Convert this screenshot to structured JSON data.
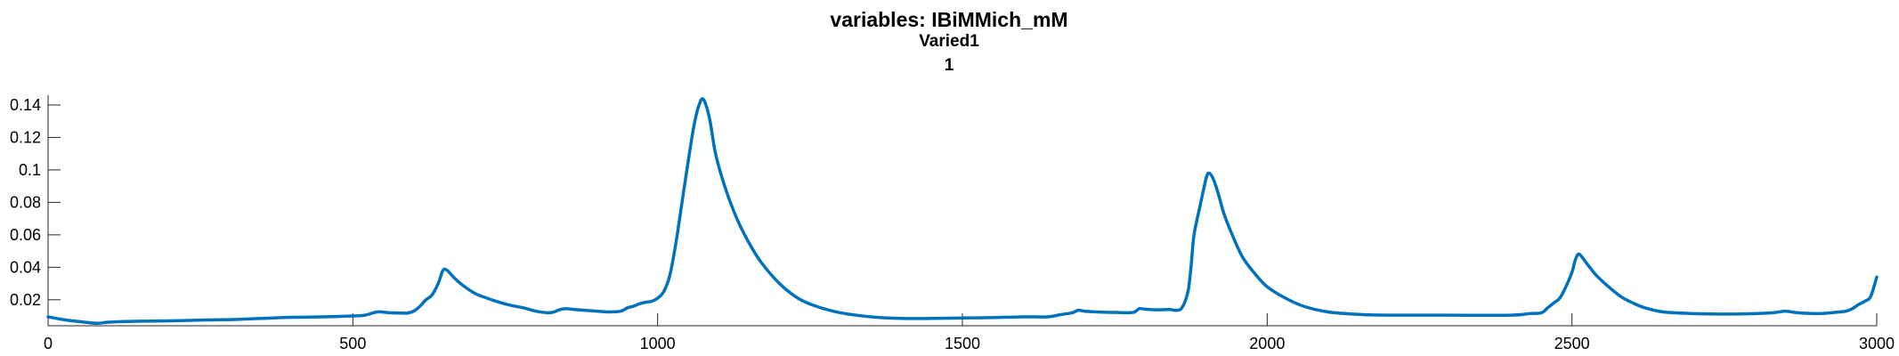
{
  "chart_data": {
    "type": "line",
    "title": "variables: IBiMMich_mM",
    "subtitle": "Varied1",
    "subtitle2": "1",
    "xlabel": "",
    "ylabel": "",
    "xlim": [
      0,
      3000
    ],
    "ylim": [
      0.004,
      0.146
    ],
    "x_ticks": [
      0,
      500,
      1000,
      1500,
      2000,
      2500,
      3000
    ],
    "x_tick_labels": [
      "0",
      "500",
      "1000",
      "1500",
      "2000",
      "2500",
      "3000"
    ],
    "y_ticks": [
      0.02,
      0.04,
      0.06,
      0.08,
      0.1,
      0.12,
      0.14
    ],
    "y_tick_labels": [
      "0.02",
      "0.04",
      "0.06",
      "0.08",
      "0.1",
      "0.12",
      "0.14"
    ],
    "grid": false,
    "series": [
      {
        "color": "#0072bd",
        "x": [
          0,
          30,
          60,
          80,
          100,
          150,
          200,
          250,
          300,
          350,
          400,
          450,
          500,
          520,
          540,
          560,
          580,
          590,
          600,
          610,
          620,
          630,
          640,
          648,
          655,
          665,
          680,
          700,
          720,
          740,
          760,
          780,
          800,
          820,
          830,
          840,
          850,
          870,
          900,
          920,
          940,
          950,
          960,
          970,
          975,
          980,
          990,
          1000,
          1010,
          1020,
          1030,
          1040,
          1050,
          1060,
          1068,
          1075,
          1085,
          1095,
          1110,
          1130,
          1150,
          1170,
          1200,
          1230,
          1260,
          1300,
          1350,
          1400,
          1450,
          1500,
          1550,
          1600,
          1640,
          1660,
          1680,
          1690,
          1700,
          1720,
          1750,
          1780,
          1790,
          1800,
          1820,
          1840,
          1850,
          1860,
          1870,
          1875,
          1880,
          1890,
          1900,
          1905,
          1912,
          1920,
          1930,
          1945,
          1960,
          1980,
          2000,
          2030,
          2060,
          2100,
          2150,
          2200,
          2300,
          2400,
          2430,
          2450,
          2460,
          2470,
          2480,
          2490,
          2500,
          2505,
          2510,
          2515,
          2525,
          2540,
          2560,
          2580,
          2600,
          2620,
          2650,
          2700,
          2750,
          2800,
          2830,
          2850,
          2870,
          2900,
          2920,
          2940,
          2950,
          2960,
          2970,
          2980,
          2990,
          3000
        ],
        "y": [
          0.0095,
          0.0075,
          0.0062,
          0.0055,
          0.0062,
          0.0068,
          0.007,
          0.0075,
          0.0078,
          0.0085,
          0.0092,
          0.0095,
          0.01,
          0.0105,
          0.0125,
          0.012,
          0.0118,
          0.0118,
          0.013,
          0.016,
          0.02,
          0.023,
          0.03,
          0.0382,
          0.038,
          0.034,
          0.029,
          0.024,
          0.021,
          0.0185,
          0.0165,
          0.015,
          0.013,
          0.012,
          0.0125,
          0.014,
          0.0145,
          0.0138,
          0.013,
          0.0125,
          0.013,
          0.015,
          0.016,
          0.0175,
          0.018,
          0.0185,
          0.019,
          0.021,
          0.025,
          0.035,
          0.055,
          0.08,
          0.105,
          0.128,
          0.14,
          0.1435,
          0.132,
          0.11,
          0.09,
          0.07,
          0.055,
          0.043,
          0.03,
          0.021,
          0.016,
          0.012,
          0.0095,
          0.0085,
          0.0085,
          0.0088,
          0.009,
          0.0095,
          0.0095,
          0.0108,
          0.012,
          0.0135,
          0.013,
          0.0125,
          0.0122,
          0.0122,
          0.0145,
          0.0142,
          0.0138,
          0.014,
          0.0135,
          0.015,
          0.025,
          0.04,
          0.06,
          0.078,
          0.095,
          0.098,
          0.094,
          0.085,
          0.072,
          0.058,
          0.046,
          0.036,
          0.028,
          0.021,
          0.016,
          0.0125,
          0.011,
          0.0105,
          0.0105,
          0.0105,
          0.0115,
          0.012,
          0.015,
          0.018,
          0.021,
          0.028,
          0.037,
          0.044,
          0.048,
          0.047,
          0.042,
          0.035,
          0.028,
          0.022,
          0.018,
          0.015,
          0.0125,
          0.0115,
          0.0112,
          0.0115,
          0.012,
          0.013,
          0.012,
          0.0115,
          0.0118,
          0.0125,
          0.013,
          0.0145,
          0.017,
          0.019,
          0.022,
          0.034
        ]
      }
    ]
  }
}
